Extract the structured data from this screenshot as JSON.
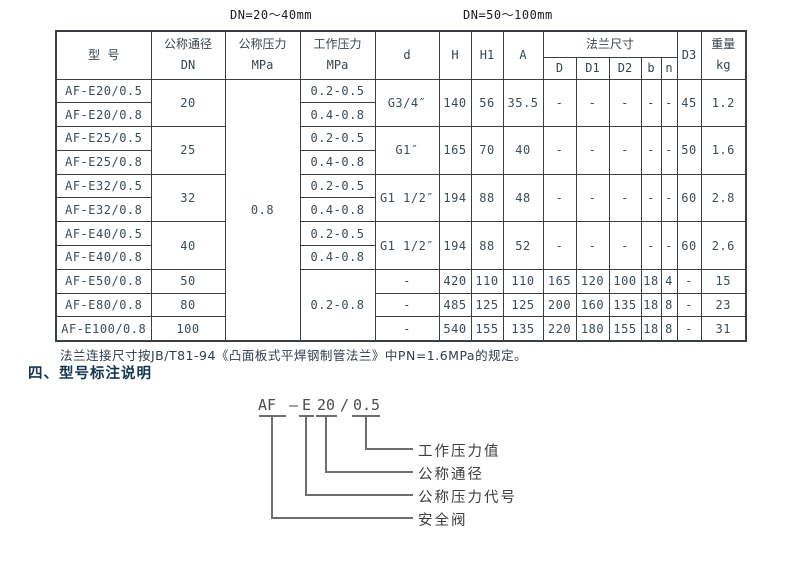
{
  "page": {
    "top_labels": {
      "small_range": "DN=20～40mm",
      "large_range": "DN=50～100mm"
    },
    "note": "法兰连接尺寸按JB/T81-94《凸面板式平焊钢制管法兰》中PN=1.6MPa的规定。",
    "section_heading": "四、型号标注说明"
  },
  "colors": {
    "heading": "#14364f",
    "note_text": "#2e3d4d",
    "table_text": "#3b4c59",
    "table_border": "#3a3f44",
    "diagram_line": "#6e6e6e"
  },
  "table": {
    "header_rows": [
      [
        {
          "t": "型 号",
          "rs": 2
        },
        {
          "t": "公称通径\nDN",
          "rs": 2
        },
        {
          "t": "公称压力\nMPa",
          "rs": 2
        },
        {
          "t": "工作压力\nMPa",
          "rs": 2
        },
        {
          "t": "d",
          "rs": 2
        },
        {
          "t": "H",
          "rs": 2
        },
        {
          "t": "H1",
          "rs": 2
        },
        {
          "t": "A",
          "rs": 2
        },
        {
          "t": "法兰尺寸",
          "cs": 5
        },
        {
          "t": "D3",
          "rs": 2
        },
        {
          "t": "重量\nkg",
          "rs": 2
        }
      ],
      [
        {
          "t": "D"
        },
        {
          "t": "D1"
        },
        {
          "t": "D2"
        },
        {
          "t": "b"
        },
        {
          "t": "n"
        }
      ]
    ],
    "body_rows": [
      [
        {
          "t": "AF-E20/0.5"
        },
        {
          "t": "20",
          "rs": 2
        },
        {
          "t": "0.8",
          "rs": 11
        },
        {
          "t": "0.2-0.5"
        },
        {
          "t": "G3/4″",
          "rs": 2
        },
        {
          "t": "140",
          "rs": 2
        },
        {
          "t": "56",
          "rs": 2
        },
        {
          "t": "35.5",
          "rs": 2
        },
        {
          "t": "-",
          "rs": 2
        },
        {
          "t": "-",
          "rs": 2
        },
        {
          "t": "-",
          "rs": 2
        },
        {
          "t": "-",
          "rs": 2
        },
        {
          "t": "-",
          "rs": 2
        },
        {
          "t": "45",
          "rs": 2
        },
        {
          "t": "1.2",
          "rs": 2
        }
      ],
      [
        {
          "t": "AF-E20/0.8"
        },
        {
          "t": "0.4-0.8"
        }
      ],
      [
        {
          "t": "AF-E25/0.5"
        },
        {
          "t": "25",
          "rs": 2
        },
        {
          "t": "0.2-0.5"
        },
        {
          "t": "G1″",
          "rs": 2
        },
        {
          "t": "165",
          "rs": 2
        },
        {
          "t": "70",
          "rs": 2
        },
        {
          "t": "40",
          "rs": 2
        },
        {
          "t": "-",
          "rs": 2
        },
        {
          "t": "-",
          "rs": 2
        },
        {
          "t": "-",
          "rs": 2
        },
        {
          "t": "-",
          "rs": 2
        },
        {
          "t": "-",
          "rs": 2
        },
        {
          "t": "50",
          "rs": 2
        },
        {
          "t": "1.6",
          "rs": 2
        }
      ],
      [
        {
          "t": "AF-E25/0.8"
        },
        {
          "t": "0.4-0.8"
        }
      ],
      [
        {
          "t": "AF-E32/0.5"
        },
        {
          "t": "32",
          "rs": 2
        },
        {
          "t": "0.2-0.5"
        },
        {
          "t": "G1 1/2″",
          "rs": 2
        },
        {
          "t": "194",
          "rs": 2
        },
        {
          "t": "88",
          "rs": 2
        },
        {
          "t": "48",
          "rs": 2
        },
        {
          "t": "-",
          "rs": 2
        },
        {
          "t": "-",
          "rs": 2
        },
        {
          "t": "-",
          "rs": 2
        },
        {
          "t": "-",
          "rs": 2
        },
        {
          "t": "-",
          "rs": 2
        },
        {
          "t": "60",
          "rs": 2
        },
        {
          "t": "2.8",
          "rs": 2
        }
      ],
      [
        {
          "t": "AF-E32/0.8"
        },
        {
          "t": "0.4-0.8"
        }
      ],
      [
        {
          "t": "AF-E40/0.5"
        },
        {
          "t": "40",
          "rs": 2
        },
        {
          "t": "0.2-0.5"
        },
        {
          "t": "G1 1/2″",
          "rs": 2
        },
        {
          "t": "194",
          "rs": 2
        },
        {
          "t": "88",
          "rs": 2
        },
        {
          "t": "52",
          "rs": 2
        },
        {
          "t": "-",
          "rs": 2
        },
        {
          "t": "-",
          "rs": 2
        },
        {
          "t": "-",
          "rs": 2
        },
        {
          "t": "-",
          "rs": 2
        },
        {
          "t": "-",
          "rs": 2
        },
        {
          "t": "60",
          "rs": 2
        },
        {
          "t": "2.6",
          "rs": 2
        }
      ],
      [
        {
          "t": "AF-E40/0.8"
        },
        {
          "t": "0.4-0.8"
        }
      ],
      [
        {
          "t": "AF-E50/0.8"
        },
        {
          "t": "50"
        },
        {
          "t": "0.2-0.8",
          "rs": 3
        },
        {
          "t": "-"
        },
        {
          "t": "420"
        },
        {
          "t": "110"
        },
        {
          "t": "110"
        },
        {
          "t": "165"
        },
        {
          "t": "120"
        },
        {
          "t": "100"
        },
        {
          "t": "18"
        },
        {
          "t": "4"
        },
        {
          "t": "-"
        },
        {
          "t": "15"
        }
      ],
      [
        {
          "t": "AF-E80/0.8"
        },
        {
          "t": "80"
        },
        {
          "t": "-"
        },
        {
          "t": "485"
        },
        {
          "t": "125"
        },
        {
          "t": "125"
        },
        {
          "t": "200"
        },
        {
          "t": "160"
        },
        {
          "t": "135"
        },
        {
          "t": "18"
        },
        {
          "t": "8"
        },
        {
          "t": "-"
        },
        {
          "t": "23"
        }
      ],
      [
        {
          "t": "AF-E100/0.8"
        },
        {
          "t": "100"
        },
        {
          "t": "-"
        },
        {
          "t": "540"
        },
        {
          "t": "155"
        },
        {
          "t": "135"
        },
        {
          "t": "220"
        },
        {
          "t": "180"
        },
        {
          "t": "155"
        },
        {
          "t": "18"
        },
        {
          "t": "8"
        },
        {
          "t": "-"
        },
        {
          "t": "31"
        }
      ]
    ]
  },
  "diagram": {
    "code_parts": {
      "prefix": "AF",
      "dash": "—",
      "pressure_code": "E",
      "diameter": "20",
      "slash": "/",
      "pressure_value": "0.5"
    },
    "labels": {
      "working_pressure": "工作压力值",
      "nominal_diameter": "公称通径",
      "pressure_code": "公称压力代号",
      "valve": "安全阀"
    }
  }
}
